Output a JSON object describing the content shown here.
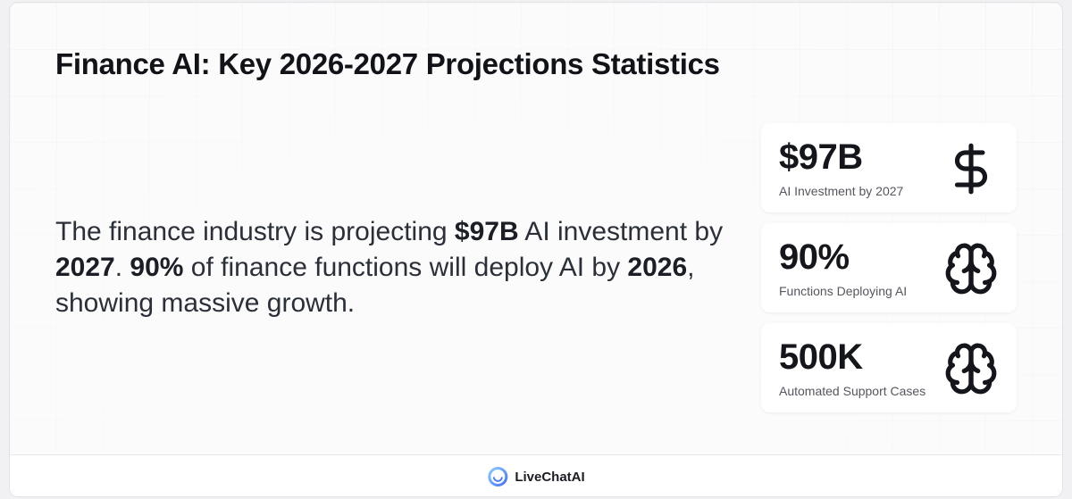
{
  "title": "Finance AI: Key 2026-2027 Projections Statistics",
  "summary": {
    "t1": "The finance industry is projecting ",
    "b1": "$97B",
    "t2": " AI investment by ",
    "b2": "2027",
    "t3": ". ",
    "b3": "90%",
    "t4": " of finance functions will deploy AI by ",
    "b4": "2026",
    "t5": ", showing massive growth."
  },
  "stats": [
    {
      "value": "$97B",
      "label": "AI Investment by 2027",
      "icon": "dollar-sign-icon"
    },
    {
      "value": "90%",
      "label": "Functions Deploying AI",
      "icon": "brain-icon"
    },
    {
      "value": "500K",
      "label": "Automated Support Cases",
      "icon": "brain-icon"
    }
  ],
  "footer": {
    "brand": "LiveChatAI",
    "logo_icon": "livechatai-logo-icon"
  },
  "colors": {
    "text_dark": "#111318",
    "text_body": "#2b2f38",
    "label_gray": "#55575e",
    "logo_blue": "#4a7dff"
  }
}
